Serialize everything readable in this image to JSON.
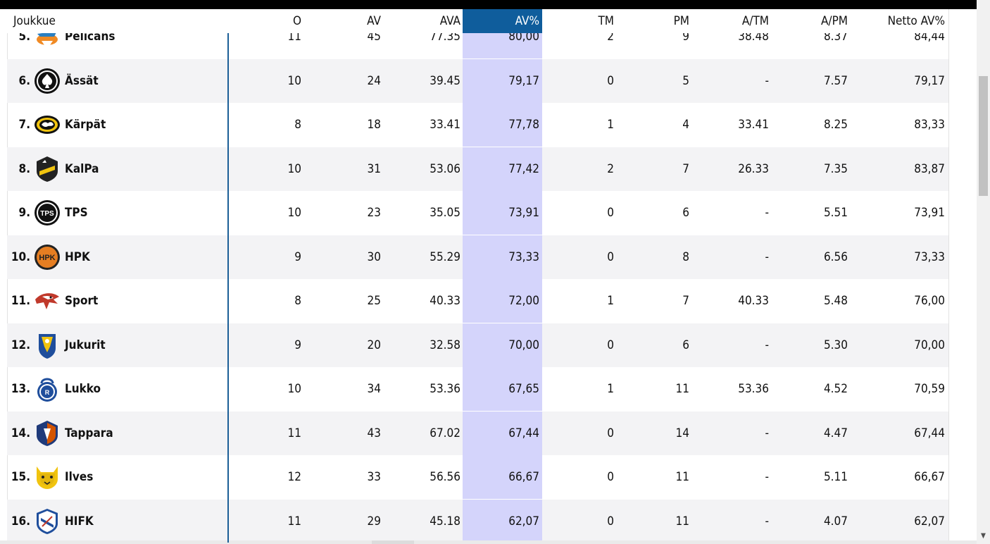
{
  "header": {
    "team_label": "Joukkue",
    "columns": [
      "O",
      "AV",
      "AVA",
      "AV%",
      "TM",
      "PM",
      "A/TM",
      "A/PM",
      "Netto AV%"
    ]
  },
  "rows": [
    {
      "rank": "5.",
      "team": "Pelicans",
      "logo": "pelicans-logo",
      "values": [
        "11",
        "45",
        "77.35",
        "80,00",
        "2",
        "9",
        "38.48",
        "8.37",
        "84,44"
      ]
    },
    {
      "rank": "6.",
      "team": "Ässät",
      "logo": "assat-logo",
      "values": [
        "10",
        "24",
        "39.45",
        "79,17",
        "0",
        "5",
        "-",
        "7.57",
        "79,17"
      ]
    },
    {
      "rank": "7.",
      "team": "Kärpät",
      "logo": "karpat-logo",
      "values": [
        "8",
        "18",
        "33.41",
        "77,78",
        "1",
        "4",
        "33.41",
        "8.25",
        "83,33"
      ]
    },
    {
      "rank": "8.",
      "team": "KalPa",
      "logo": "kalpa-logo",
      "values": [
        "10",
        "31",
        "53.06",
        "77,42",
        "2",
        "7",
        "26.33",
        "7.35",
        "83,87"
      ]
    },
    {
      "rank": "9.",
      "team": "TPS",
      "logo": "tps-logo",
      "values": [
        "10",
        "23",
        "35.05",
        "73,91",
        "0",
        "6",
        "-",
        "5.51",
        "73,91"
      ]
    },
    {
      "rank": "10.",
      "team": "HPK",
      "logo": "hpk-logo",
      "values": [
        "9",
        "30",
        "55.29",
        "73,33",
        "0",
        "8",
        "-",
        "6.56",
        "73,33"
      ]
    },
    {
      "rank": "11.",
      "team": "Sport",
      "logo": "sport-logo",
      "values": [
        "8",
        "25",
        "40.33",
        "72,00",
        "1",
        "7",
        "40.33",
        "5.48",
        "76,00"
      ]
    },
    {
      "rank": "12.",
      "team": "Jukurit",
      "logo": "jukurit-logo",
      "values": [
        "9",
        "20",
        "32.58",
        "70,00",
        "0",
        "6",
        "-",
        "5.30",
        "70,00"
      ]
    },
    {
      "rank": "13.",
      "team": "Lukko",
      "logo": "lukko-logo",
      "values": [
        "10",
        "34",
        "53.36",
        "67,65",
        "1",
        "11",
        "53.36",
        "4.52",
        "70,59"
      ]
    },
    {
      "rank": "14.",
      "team": "Tappara",
      "logo": "tappara-logo",
      "values": [
        "11",
        "43",
        "67.02",
        "67,44",
        "0",
        "14",
        "-",
        "4.47",
        "67,44"
      ]
    },
    {
      "rank": "15.",
      "team": "Ilves",
      "logo": "ilves-logo",
      "values": [
        "12",
        "33",
        "56.56",
        "66,67",
        "0",
        "11",
        "-",
        "5.11",
        "66,67"
      ]
    },
    {
      "rank": "16.",
      "team": "HIFK",
      "logo": "hifk-logo",
      "values": [
        "11",
        "29",
        "45.18",
        "62,07",
        "0",
        "11",
        "-",
        "4.07",
        "62,07"
      ]
    }
  ],
  "colors": {
    "active_header": "#0f5d9c",
    "active_column": "#d4d4fb",
    "divider": "#1b5e97",
    "alt_row": "#f3f3f5"
  }
}
